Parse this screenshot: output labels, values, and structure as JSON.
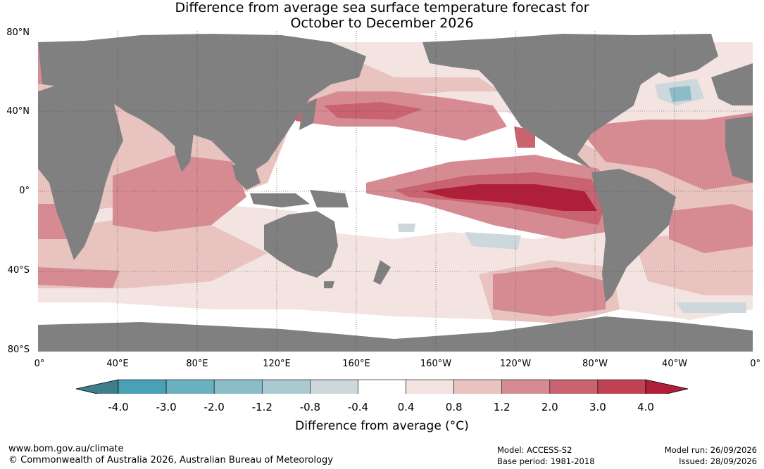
{
  "title_line1": "Difference from average sea surface temperature forecast for",
  "title_line2": "October to December 2026",
  "lat_labels": [
    "80°N",
    "40°N",
    "0°",
    "40°S",
    "80°S"
  ],
  "lon_labels": [
    "0°",
    "40°E",
    "80°E",
    "120°E",
    "160°E",
    "160°W",
    "120°W",
    "80°W",
    "40°W",
    "0°"
  ],
  "colorbar": {
    "ticks": [
      "-4.0",
      "-3.0",
      "-2.0",
      "-1.2",
      "-0.8",
      "-0.4",
      "0.4",
      "0.8",
      "1.2",
      "2.0",
      "3.0",
      "4.0"
    ],
    "colors": [
      "#3f7f8c",
      "#4aa0b5",
      "#6bb0bf",
      "#8bbcc8",
      "#abc9d1",
      "#cdd8dc",
      "#ffffff",
      "#f3e4e2",
      "#e8c3c0",
      "#d68b93",
      "#c9636f",
      "#bf4352",
      "#b01f3a"
    ],
    "title": "Difference from average (°C)"
  },
  "land_color": "#808080",
  "footer": {
    "url": "www.bom.gov.au/climate",
    "copyright": "© Commonwealth of Australia 2026, Australian Bureau of Meteorology",
    "model": "Model: ACCESS-S2",
    "base_period": "Base period: 1981-2018",
    "model_run": "Model run: 26/09/2026",
    "issued": "Issued: 28/09/2026"
  }
}
